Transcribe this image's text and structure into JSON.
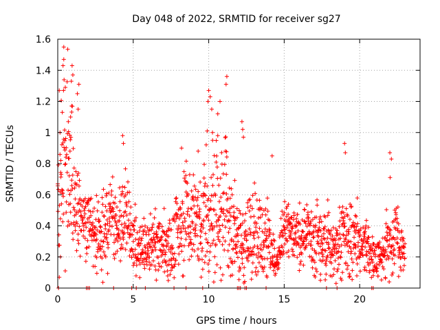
{
  "chart_data": {
    "type": "scatter",
    "title": "Day 048 of 2022, SRMTID for receiver sg27",
    "xlabel": "GPS time / hours",
    "ylabel": "SRMTID / TECUs",
    "xlim": [
      0,
      24
    ],
    "ylim": [
      0,
      1.6
    ],
    "grid": true,
    "xticks": [
      0,
      5,
      10,
      15,
      20
    ],
    "xtick_labels": [
      "0",
      "5",
      "10",
      "15",
      "20"
    ],
    "yticks": [
      0,
      0.2,
      0.4,
      0.6,
      0.8,
      1.0,
      1.2,
      1.4,
      1.6
    ],
    "ytick_labels": [
      "0",
      "0.2",
      "0.4",
      "0.6",
      "0.8",
      "1",
      "1.2",
      "1.4",
      "1.6"
    ],
    "marker": "+",
    "color": "#ff0000",
    "envelope": {
      "hours": [
        0,
        0.5,
        1,
        1.5,
        2,
        2.5,
        3,
        3.5,
        4,
        4.5,
        5,
        5.5,
        6,
        6.5,
        7,
        7.5,
        8,
        8.5,
        9,
        9.5,
        10,
        10.5,
        11,
        11.5,
        12,
        12.5,
        13,
        13.5,
        14,
        14.5,
        15,
        15.5,
        16,
        16.5,
        17,
        17.5,
        18,
        18.5,
        19,
        19.5,
        20,
        20.5,
        21,
        21.5,
        22,
        22.5,
        23
      ],
      "center": [
        0.55,
        0.85,
        0.6,
        0.5,
        0.45,
        0.35,
        0.4,
        0.45,
        0.4,
        0.45,
        0.3,
        0.25,
        0.25,
        0.3,
        0.3,
        0.25,
        0.35,
        0.45,
        0.4,
        0.45,
        0.45,
        0.5,
        0.45,
        0.4,
        0.3,
        0.3,
        0.35,
        0.35,
        0.3,
        0.15,
        0.4,
        0.35,
        0.35,
        0.35,
        0.3,
        0.3,
        0.3,
        0.25,
        0.35,
        0.35,
        0.3,
        0.25,
        0.2,
        0.2,
        0.35,
        0.3,
        0.2
      ],
      "spread": [
        0.3,
        0.45,
        0.35,
        0.2,
        0.15,
        0.15,
        0.2,
        0.2,
        0.15,
        0.2,
        0.15,
        0.12,
        0.12,
        0.15,
        0.15,
        0.15,
        0.2,
        0.25,
        0.2,
        0.25,
        0.3,
        0.3,
        0.3,
        0.25,
        0.15,
        0.2,
        0.2,
        0.2,
        0.15,
        0.06,
        0.15,
        0.15,
        0.15,
        0.15,
        0.15,
        0.15,
        0.15,
        0.15,
        0.2,
        0.2,
        0.15,
        0.12,
        0.1,
        0.1,
        0.2,
        0.15,
        0.06
      ]
    },
    "peaks": [
      {
        "x": 0.4,
        "y": 1.55
      },
      {
        "x": 0.4,
        "y": 1.47
      },
      {
        "x": 0.35,
        "y": 1.43
      },
      {
        "x": 0.95,
        "y": 1.43
      },
      {
        "x": 1.0,
        "y": 1.37
      },
      {
        "x": 0.9,
        "y": 1.33
      },
      {
        "x": 1.4,
        "y": 1.31
      },
      {
        "x": 1.3,
        "y": 1.25
      },
      {
        "x": 0.5,
        "y": 1.29
      },
      {
        "x": 0.1,
        "y": 1.27
      },
      {
        "x": 1.35,
        "y": 1.15
      },
      {
        "x": 0.3,
        "y": 1.13
      },
      {
        "x": 0.85,
        "y": 1.1
      },
      {
        "x": 0.7,
        "y": 1.07
      },
      {
        "x": 0.15,
        "y": 1.0
      },
      {
        "x": 4.3,
        "y": 0.98
      },
      {
        "x": 4.35,
        "y": 0.93
      },
      {
        "x": 10.0,
        "y": 1.27
      },
      {
        "x": 10.1,
        "y": 1.23
      },
      {
        "x": 9.95,
        "y": 1.2
      },
      {
        "x": 10.2,
        "y": 1.15
      },
      {
        "x": 10.75,
        "y": 1.2
      },
      {
        "x": 10.6,
        "y": 1.12
      },
      {
        "x": 11.2,
        "y": 1.36
      },
      {
        "x": 11.15,
        "y": 1.31
      },
      {
        "x": 9.9,
        "y": 1.01
      },
      {
        "x": 10.25,
        "y": 1.0
      },
      {
        "x": 10.6,
        "y": 0.98
      },
      {
        "x": 12.2,
        "y": 1.07
      },
      {
        "x": 12.25,
        "y": 1.02
      },
      {
        "x": 12.3,
        "y": 0.97
      },
      {
        "x": 8.2,
        "y": 0.9
      },
      {
        "x": 9.3,
        "y": 0.88
      },
      {
        "x": 19.0,
        "y": 0.93
      },
      {
        "x": 19.05,
        "y": 0.87
      },
      {
        "x": 22.0,
        "y": 0.87
      },
      {
        "x": 22.1,
        "y": 0.83
      },
      {
        "x": 14.2,
        "y": 0.85
      }
    ],
    "lows": [
      {
        "x": 0.05,
        "y": 0.0
      },
      {
        "x": 1.9,
        "y": 0.0
      },
      {
        "x": 2.0,
        "y": 0.0
      },
      {
        "x": 2.1,
        "y": 0.0
      },
      {
        "x": 3.7,
        "y": 0.0
      },
      {
        "x": 4.9,
        "y": 0.0
      },
      {
        "x": 5.2,
        "y": 0.0
      },
      {
        "x": 5.8,
        "y": 0.0
      },
      {
        "x": 7.7,
        "y": 0.0
      },
      {
        "x": 8.5,
        "y": 0.0
      },
      {
        "x": 9.6,
        "y": 0.0
      },
      {
        "x": 11.9,
        "y": 0.0
      },
      {
        "x": 12.0,
        "y": 0.0
      },
      {
        "x": 12.1,
        "y": 0.0
      },
      {
        "x": 12.4,
        "y": 0.0
      },
      {
        "x": 12.5,
        "y": 0.0
      },
      {
        "x": 13.8,
        "y": 0.0
      },
      {
        "x": 17.8,
        "y": 0.0
      },
      {
        "x": 18.5,
        "y": 0.0
      },
      {
        "x": 20.8,
        "y": 0.0
      },
      {
        "x": 20.9,
        "y": 0.0
      },
      {
        "x": 17.4,
        "y": 0.05
      },
      {
        "x": 9.5,
        "y": 0.07
      },
      {
        "x": 20.9,
        "y": 0.08
      }
    ]
  }
}
